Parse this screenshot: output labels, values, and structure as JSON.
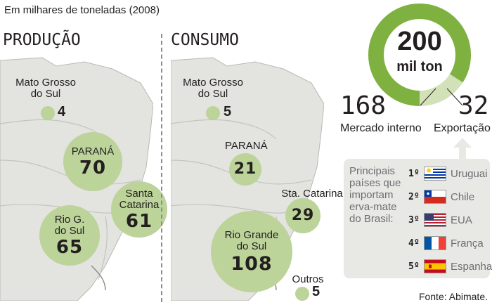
{
  "subtitle": "Em milhares de toneladas (2008)",
  "producao": {
    "title": "PRODUÇÃO",
    "regions": [
      {
        "name": "Mato Grosso do Sul",
        "label_lines": [
          "Mato Grosso",
          "do Sul"
        ],
        "value": "4"
      },
      {
        "name": "Paraná",
        "label_lines": [
          "PARANÁ"
        ],
        "value": "70"
      },
      {
        "name": "Santa Catarina",
        "label_lines": [
          "Santa",
          "Catarina"
        ],
        "value": "61"
      },
      {
        "name": "Rio Grande do Sul",
        "label_lines": [
          "Rio G.",
          "do Sul"
        ],
        "value": "65"
      }
    ]
  },
  "consumo": {
    "title": "CONSUMO",
    "regions": [
      {
        "name": "Mato Grosso do Sul",
        "label_lines": [
          "Mato Grosso",
          "do Sul"
        ],
        "value": "5"
      },
      {
        "name": "Paraná",
        "label_lines": [
          "PARANÁ"
        ],
        "value": "21"
      },
      {
        "name": "Santa Catarina",
        "label_lines": [
          "Sta. Catarina"
        ],
        "value": "29"
      },
      {
        "name": "Rio Grande do Sul",
        "label_lines": [
          "Rio Grande",
          "do Sul"
        ],
        "value": "108"
      },
      {
        "name": "Outros",
        "label_lines": [
          "Outros"
        ],
        "value": "5"
      }
    ]
  },
  "total": {
    "value": "200",
    "unit": "mil ton",
    "mercado_interno": {
      "value": "168",
      "label": "Mercado interno"
    },
    "exportacao": {
      "value": "32",
      "label": "Exportação"
    },
    "share_mercado_interno": 0.84,
    "share_exportacao": 0.16
  },
  "importers": {
    "text_lines": [
      "Principais",
      "países que",
      "importam",
      "erva-mate",
      "do Brasil:"
    ],
    "list": [
      {
        "rank": "1º",
        "country": "Uruguai",
        "flag": "uruguay-flag"
      },
      {
        "rank": "2º",
        "country": "Chile",
        "flag": "chile-flag"
      },
      {
        "rank": "3º",
        "country": "EUA",
        "flag": "usa-flag"
      },
      {
        "rank": "4º",
        "country": "França",
        "flag": "france-flag"
      },
      {
        "rank": "5º",
        "country": "Espanha",
        "flag": "spain-flag"
      }
    ]
  },
  "source": "Fonte: Abimate.",
  "colors": {
    "circle": "#bcd39a",
    "donut_main": "#7eb140",
    "donut_light": "#d2e1b8",
    "land": "#e3e3df",
    "sea": "#ffffff",
    "text": "#231f20",
    "panel": "#e8e8e5"
  }
}
